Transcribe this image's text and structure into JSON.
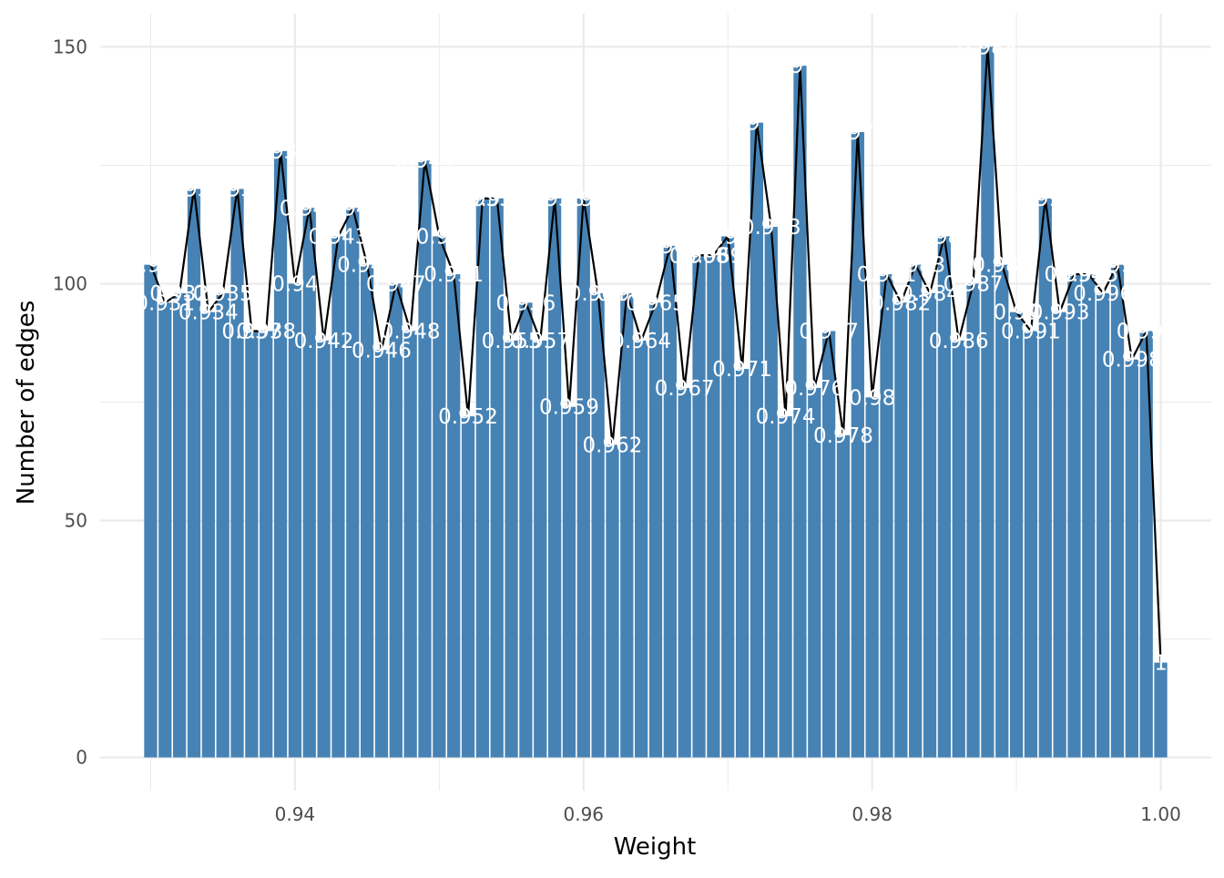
{
  "chart_data": {
    "type": "bar",
    "overlay": "line",
    "xlabel": "Weight",
    "ylabel": "Number of edges",
    "xlim": [
      0.9265,
      1.0035
    ],
    "ylim": [
      -7,
      157
    ],
    "x_ticks": [
      0.94,
      0.96,
      0.98,
      1.0
    ],
    "x_tick_labels": [
      "0.94",
      "0.96",
      "0.98",
      "1.00"
    ],
    "y_ticks": [
      0,
      50,
      100,
      150
    ],
    "y_tick_labels": [
      "0",
      "50",
      "100",
      "150"
    ],
    "grid": true,
    "bar_color": "#4682b4",
    "line_color": "#000000",
    "label_color": "#ffffff",
    "x": [
      0.93,
      0.931,
      0.932,
      0.933,
      0.934,
      0.935,
      0.936,
      0.937,
      0.938,
      0.939,
      0.94,
      0.941,
      0.942,
      0.943,
      0.944,
      0.945,
      0.946,
      0.947,
      0.948,
      0.949,
      0.95,
      0.951,
      0.952,
      0.953,
      0.954,
      0.955,
      0.956,
      0.957,
      0.958,
      0.959,
      0.96,
      0.961,
      0.962,
      0.963,
      0.964,
      0.965,
      0.966,
      0.967,
      0.968,
      0.969,
      0.97,
      0.971,
      0.972,
      0.973,
      0.974,
      0.975,
      0.976,
      0.977,
      0.978,
      0.979,
      0.98,
      0.981,
      0.982,
      0.983,
      0.984,
      0.985,
      0.986,
      0.987,
      0.988,
      0.989,
      0.99,
      0.991,
      0.992,
      0.993,
      0.994,
      0.995,
      0.996,
      0.997,
      0.998,
      0.999,
      1.0
    ],
    "values": [
      104,
      96,
      98,
      120,
      94,
      98,
      120,
      90,
      90,
      128,
      100,
      116,
      88,
      110,
      116,
      104,
      86,
      100,
      90,
      126,
      110,
      102,
      72,
      118,
      118,
      88,
      96,
      88,
      118,
      74,
      118,
      98,
      66,
      98,
      88,
      96,
      108,
      78,
      106,
      106,
      110,
      82,
      134,
      112,
      72,
      146,
      78,
      90,
      68,
      132,
      76,
      102,
      96,
      104,
      98,
      110,
      88,
      100,
      150,
      104,
      94,
      90,
      118,
      94,
      102,
      102,
      98,
      104,
      84,
      90,
      20
    ],
    "point_labels": [
      "0.93",
      "0.931",
      "0.932",
      "0.933",
      "0.934",
      "0.935",
      "0.936",
      "0.937",
      "0.938",
      "0.939",
      "0.94",
      "0.941",
      "0.942",
      "0.943",
      "0.944",
      "0.945",
      "0.946",
      "0.947",
      "0.948",
      "0.949",
      "0.95",
      "0.951",
      "0.952",
      "0.953",
      "0.954",
      "0.955",
      "0.956",
      "0.957",
      "0.958",
      "0.959",
      "0.96",
      "0.961",
      "0.962",
      "0.963",
      "0.964",
      "0.965",
      "0.966",
      "0.967",
      "0.968",
      "0.969",
      "0.97",
      "0.971",
      "0.972",
      "0.973",
      "0.974",
      "0.975",
      "0.976",
      "0.977",
      "0.978",
      "0.979",
      "0.98",
      "0.981",
      "0.982",
      "0.983",
      "0.984",
      "0.985",
      "0.986",
      "0.987",
      "0.988",
      "0.989",
      "0.99",
      "0.991",
      "0.992",
      "0.993",
      "0.994",
      "0.995",
      "0.996",
      "0.997",
      "0.998",
      "0.999",
      "1"
    ]
  }
}
